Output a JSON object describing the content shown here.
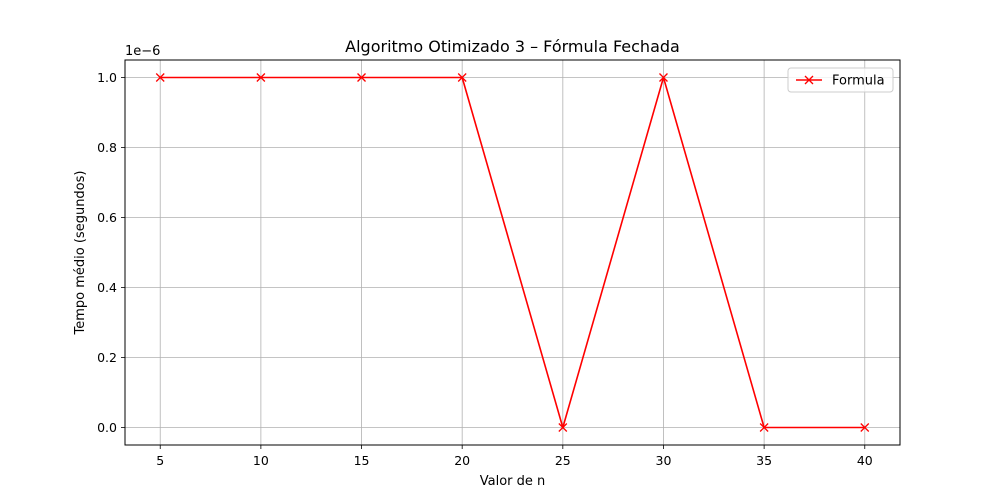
{
  "chart_data": {
    "type": "line",
    "title": "Algoritmo Otimizado 3 – Fórmula Fechada",
    "xlabel": "Valor de n",
    "ylabel": "Tempo médio (segundos)",
    "y_offset_label": "1e−6",
    "x": [
      5,
      10,
      15,
      20,
      25,
      30,
      35,
      40
    ],
    "series": [
      {
        "name": "Formula",
        "values": [
          1.0,
          1.0,
          1.0,
          1.0,
          0.0,
          1.0,
          0.0,
          0.0
        ],
        "color": "#ff0000",
        "marker": "x"
      }
    ],
    "xlim": [
      3.25,
      41.75
    ],
    "ylim": [
      -0.05,
      1.05
    ],
    "xticks": [
      5,
      10,
      15,
      20,
      25,
      30,
      35,
      40
    ],
    "xtick_labels": [
      "5",
      "10",
      "15",
      "20",
      "25",
      "30",
      "35",
      "40"
    ],
    "yticks": [
      0.0,
      0.2,
      0.4,
      0.6,
      0.8,
      1.0
    ],
    "ytick_labels": [
      "0.0",
      "0.2",
      "0.4",
      "0.6",
      "0.8",
      "1.0"
    ],
    "grid": true,
    "legend_position": "upper right",
    "colors": {
      "grid": "#b0b0b0",
      "axes": "#000000"
    }
  }
}
